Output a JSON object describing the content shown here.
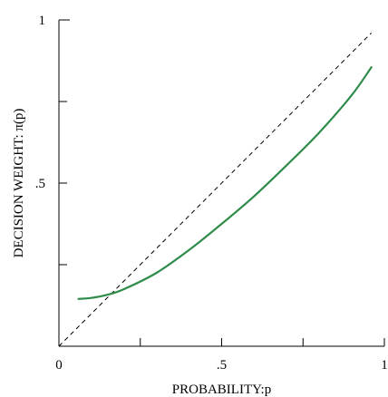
{
  "chart_data": {
    "type": "line",
    "xlabel": "PROBABILITY:p",
    "ylabel": "DECISION WEIGHT: π(p)",
    "xlim": [
      0,
      1
    ],
    "ylim": [
      0,
      1
    ],
    "x_ticks": [
      {
        "value": 0,
        "label": "0"
      },
      {
        "value": 0.25,
        "label": ""
      },
      {
        "value": 0.5,
        "label": ".5"
      },
      {
        "value": 0.75,
        "label": ""
      },
      {
        "value": 1,
        "label": "1"
      }
    ],
    "y_ticks": [
      {
        "value": 0.25,
        "label": ""
      },
      {
        "value": 0.5,
        "label": ".5"
      },
      {
        "value": 0.75,
        "label": ""
      },
      {
        "value": 1,
        "label": "1"
      }
    ],
    "reference_line": {
      "style": "dashed",
      "color": "#000000",
      "x": [
        0,
        0.96
      ],
      "y": [
        0,
        0.96
      ]
    },
    "series": [
      {
        "color": "#2e8b4a",
        "x": [
          0.06,
          0.1,
          0.15,
          0.2,
          0.3,
          0.4,
          0.5,
          0.6,
          0.7,
          0.8,
          0.9,
          0.96
        ],
        "y": [
          0.145,
          0.148,
          0.158,
          0.175,
          0.225,
          0.295,
          0.375,
          0.46,
          0.555,
          0.655,
          0.77,
          0.855
        ]
      }
    ],
    "grid": false,
    "legend": "none"
  }
}
